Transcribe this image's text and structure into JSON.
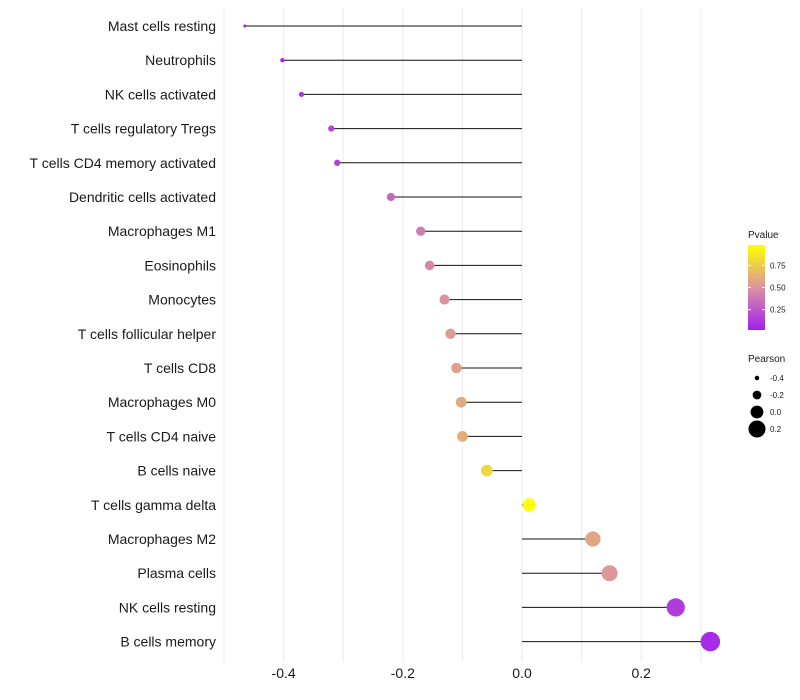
{
  "chart_data": {
    "type": "lollipop",
    "title": "",
    "xlabel": "",
    "ylabel": "",
    "xlim": [
      -0.5,
      0.35
    ],
    "xticks": [
      -0.4,
      -0.2,
      0.0,
      0.2
    ],
    "xtick_labels": [
      "-0.4",
      "-0.2",
      "0.0",
      "0.2"
    ],
    "grid": true,
    "categories": [
      "Mast cells resting",
      "Neutrophils",
      "NK cells activated",
      "T cells regulatory  Tregs ",
      "T cells CD4 memory activated",
      "Dendritic cells activated",
      "Macrophages M1",
      "Eosinophils",
      "Monocytes",
      "T cells follicular helper",
      "T cells CD8",
      "Macrophages M0",
      "T cells CD4 naive",
      "B cells naive",
      "T cells gamma delta",
      "Macrophages M2",
      "Plasma cells",
      "NK cells resting",
      "B cells memory"
    ],
    "pearson": [
      -0.465,
      -0.402,
      -0.37,
      -0.32,
      -0.31,
      -0.22,
      -0.17,
      -0.155,
      -0.13,
      -0.12,
      -0.11,
      -0.102,
      -0.1,
      -0.059,
      0.012,
      0.119,
      0.147,
      0.258,
      0.316
    ],
    "pvalue": [
      0.03,
      0.06,
      0.08,
      0.16,
      0.17,
      0.32,
      0.4,
      0.45,
      0.5,
      0.53,
      0.56,
      0.6,
      0.61,
      0.8,
      0.97,
      0.58,
      0.52,
      0.14,
      0.07
    ],
    "legend_pvalue": {
      "title": "Pvalue",
      "ticks": [
        0.25,
        0.5,
        0.75
      ],
      "tick_labels": [
        "0.25",
        "0.50",
        "0.75"
      ],
      "range": [
        0.02,
        0.98
      ],
      "colors": [
        "#a020f0",
        "#ffff00"
      ],
      "position": "right"
    },
    "legend_pearson": {
      "title": "Pearson",
      "values": [
        -0.4,
        -0.2,
        0.0,
        0.2
      ],
      "labels": [
        "-0.4",
        "-0.2",
        "0.0",
        "0.2"
      ],
      "position": "right"
    }
  }
}
